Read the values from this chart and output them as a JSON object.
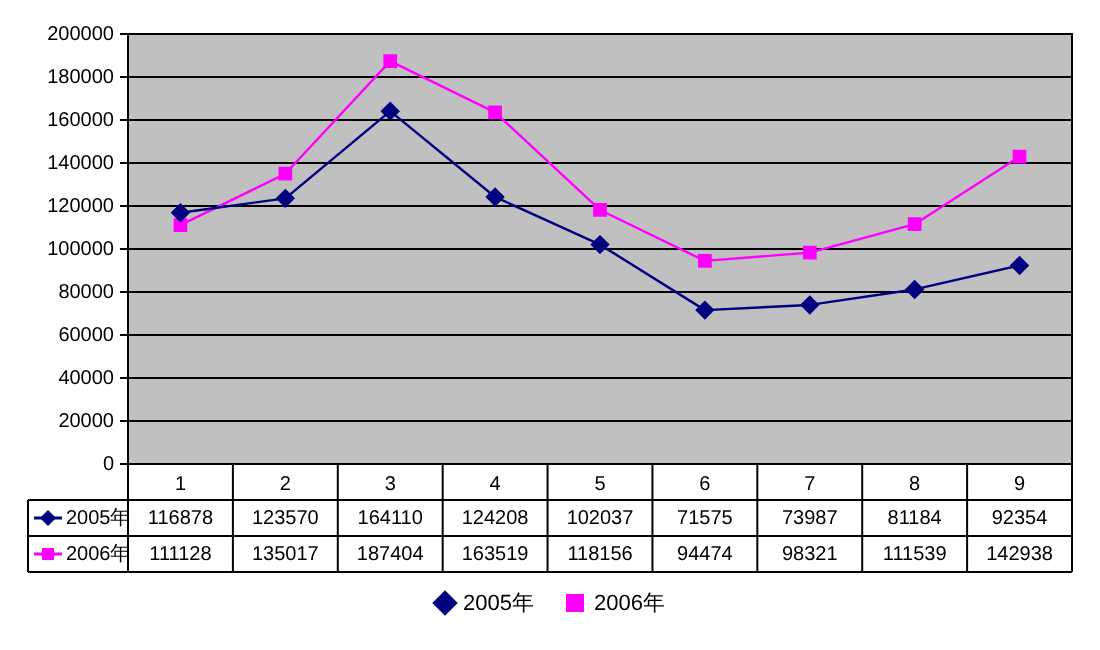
{
  "chart_data": {
    "type": "line",
    "categories": [
      "1",
      "2",
      "3",
      "4",
      "5",
      "6",
      "7",
      "8",
      "9"
    ],
    "series": [
      {
        "name": "2005年",
        "color": "#000080",
        "marker": "diamond",
        "values": [
          116878,
          123570,
          164110,
          124208,
          102037,
          71575,
          73987,
          81184,
          92354
        ]
      },
      {
        "name": "2006年",
        "color": "#ff00ff",
        "marker": "square",
        "values": [
          111128,
          135017,
          187404,
          163519,
          118156,
          94474,
          98321,
          111539,
          142938
        ]
      }
    ],
    "ylim": [
      0,
      200000
    ],
    "yticks": [
      0,
      20000,
      40000,
      60000,
      80000,
      100000,
      120000,
      140000,
      160000,
      180000,
      200000
    ],
    "grid": "y",
    "legend": "bottom",
    "data_labels": true
  }
}
